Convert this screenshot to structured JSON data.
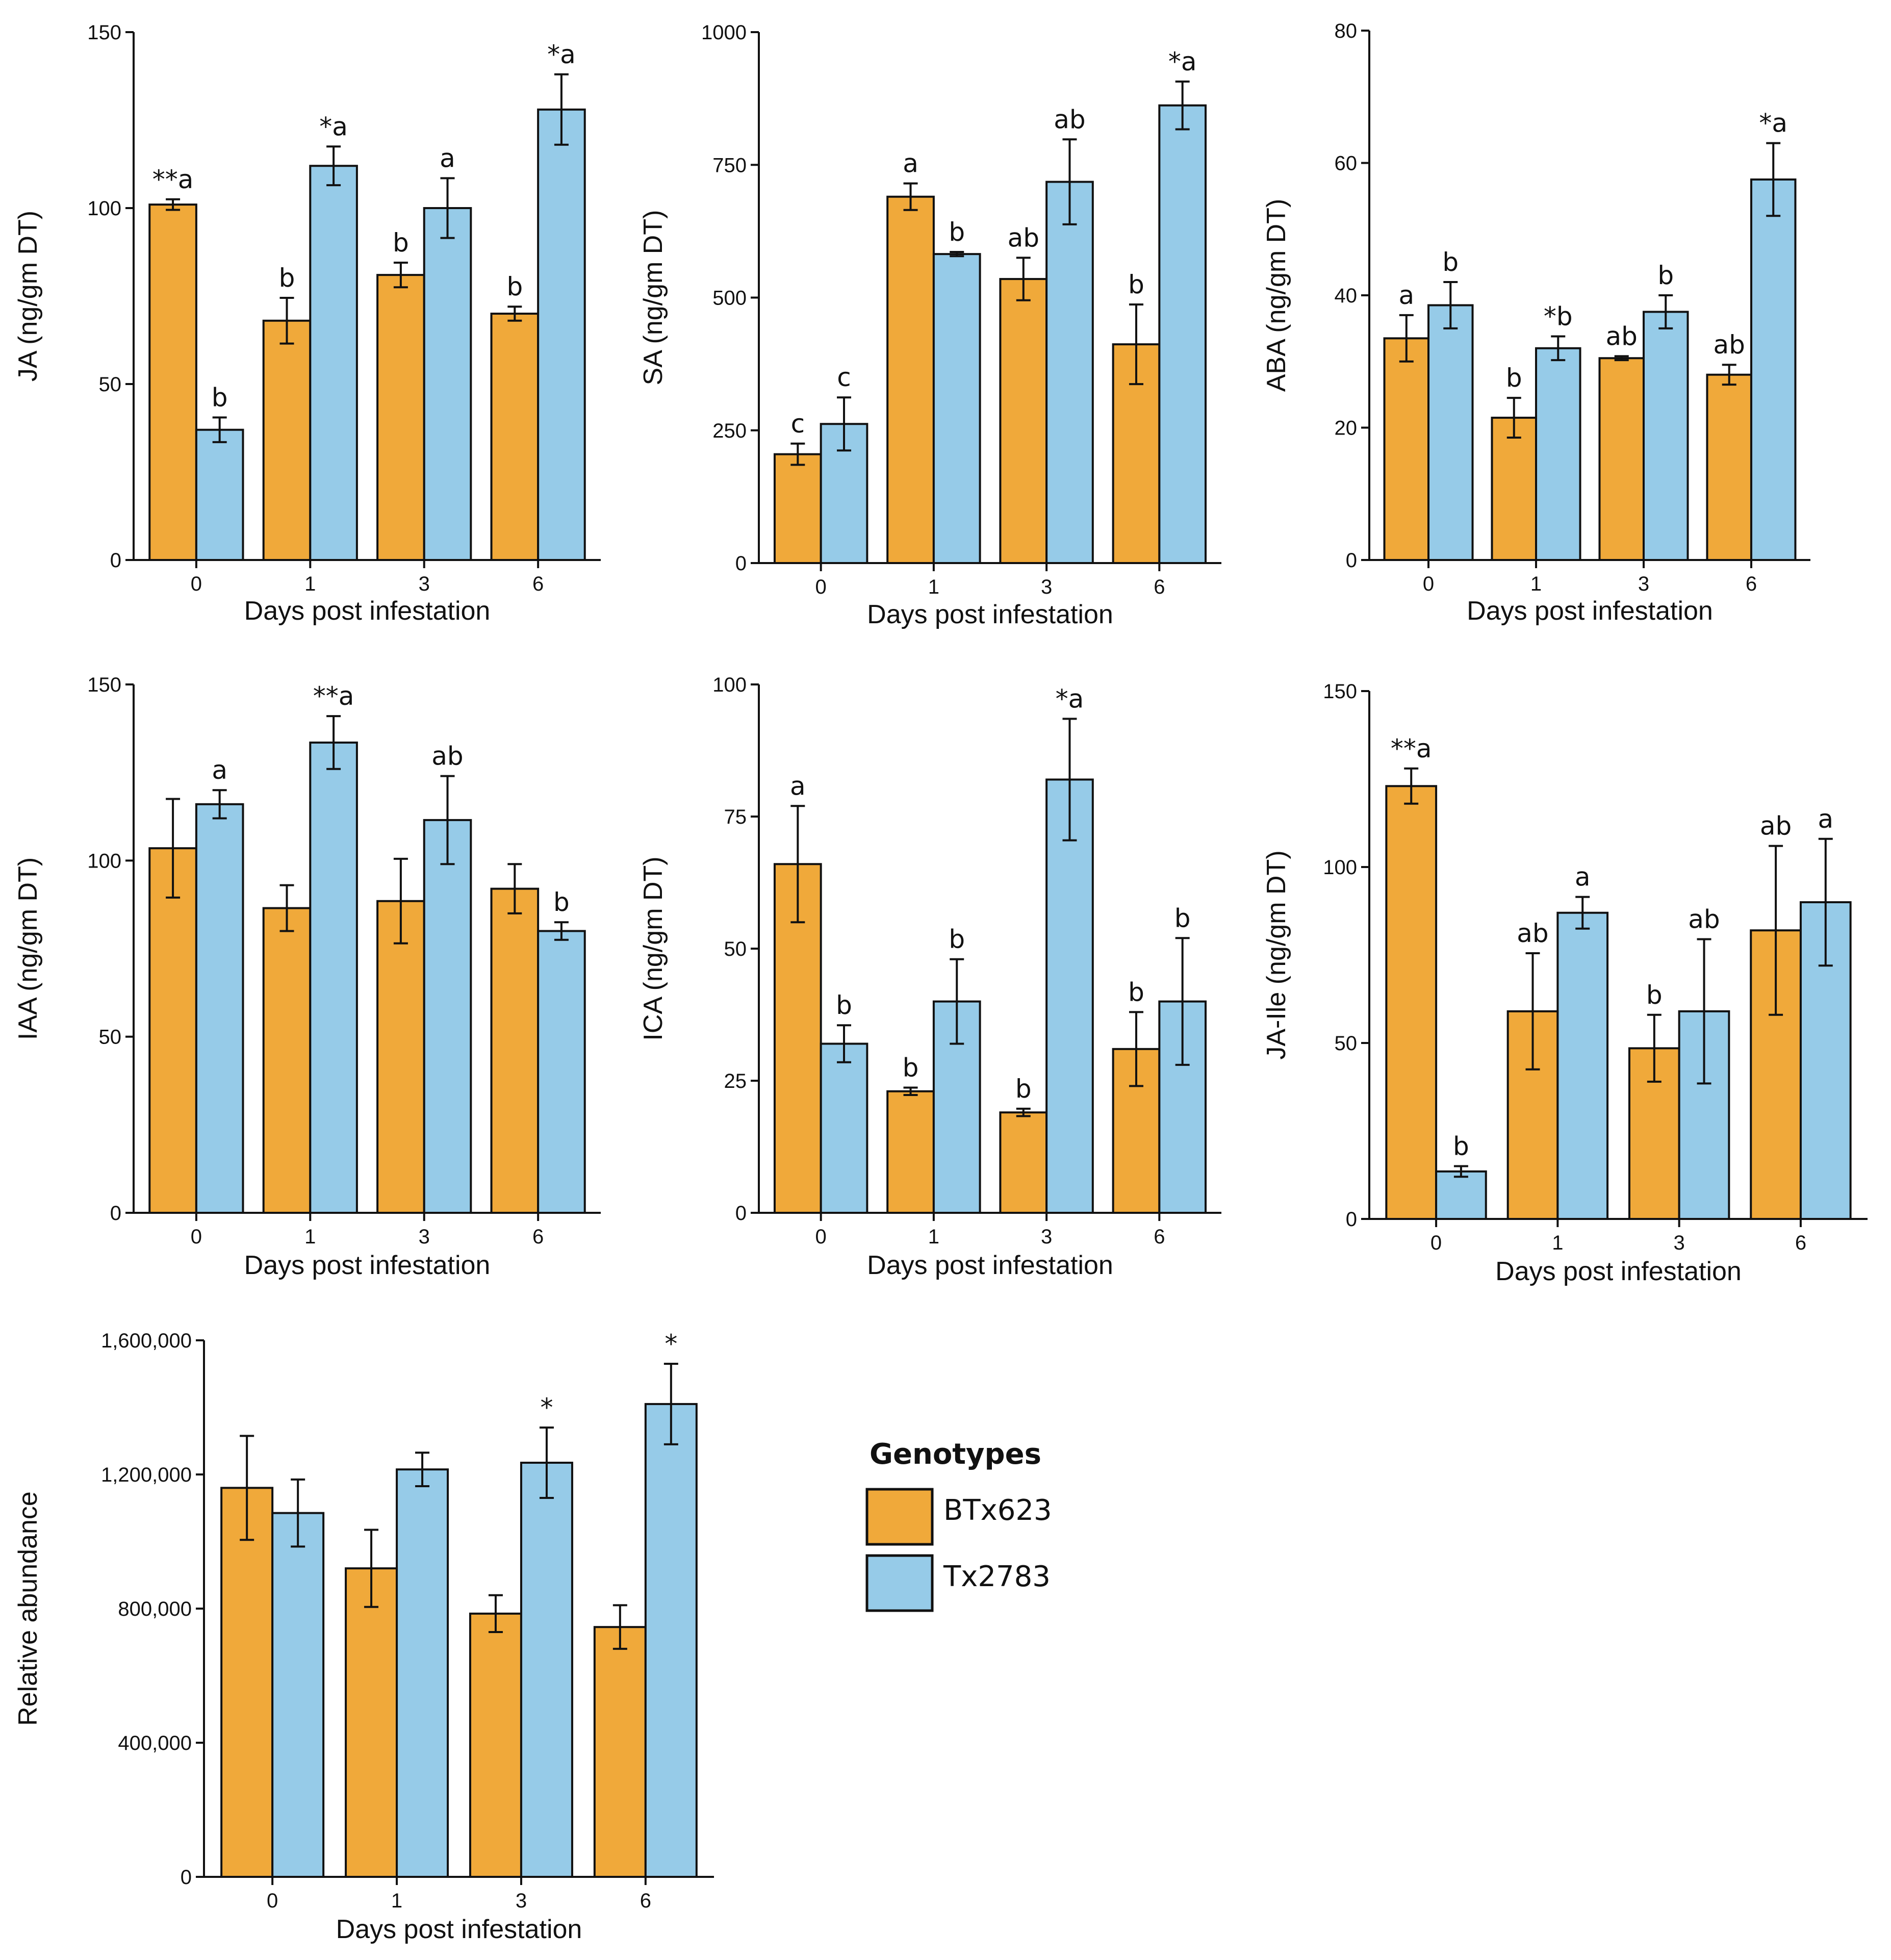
{
  "chart_data": [
    {
      "type": "bar",
      "categories": [
        "0",
        "1",
        "3",
        "6"
      ],
      "series": [
        {
          "name": "BTx623",
          "values": [
            101,
            68,
            81,
            70
          ],
          "errors": [
            1.5,
            6.5,
            3.5,
            2
          ],
          "labels": [
            "**a",
            "b",
            "b",
            "b"
          ]
        },
        {
          "name": "Tx2783",
          "values": [
            37,
            112,
            100,
            128
          ],
          "errors": [
            3.5,
            5.5,
            8.5,
            10
          ],
          "labels": [
            "b",
            "*a",
            "a",
            "*a"
          ]
        }
      ],
      "xlabel": "Days post infestation",
      "ylabel": "JA (ng/gm DT)",
      "ylim": [
        0,
        150
      ],
      "yticks": [
        "0",
        "50",
        "100",
        "150"
      ]
    },
    {
      "type": "bar",
      "categories": [
        "0",
        "1",
        "3",
        "6"
      ],
      "series": [
        {
          "name": "BTx623",
          "values": [
            205,
            690,
            535,
            412
          ],
          "errors": [
            20,
            25,
            40,
            75
          ],
          "labels": [
            "c",
            "a",
            "ab",
            "b"
          ]
        },
        {
          "name": "Tx2783",
          "values": [
            262,
            582,
            718,
            862
          ],
          "errors": [
            50,
            4,
            80,
            45
          ],
          "labels": [
            "c",
            "b",
            "ab",
            "*a"
          ]
        }
      ],
      "xlabel": "Days post infestation",
      "ylabel": "SA (ng/gm DT)",
      "ylim": [
        0,
        1000
      ],
      "yticks": [
        "0",
        "250",
        "500",
        "750",
        "1000"
      ]
    },
    {
      "type": "bar",
      "categories": [
        "0",
        "1",
        "3",
        "6"
      ],
      "series": [
        {
          "name": "BTx623",
          "values": [
            33.5,
            21.5,
            30.5,
            28
          ],
          "errors": [
            3.5,
            3,
            0.3,
            1.5
          ],
          "labels": [
            "a",
            "b",
            "ab",
            "ab"
          ]
        },
        {
          "name": "Tx2783",
          "values": [
            38.5,
            32,
            37.5,
            57.5
          ],
          "errors": [
            3.5,
            1.8,
            2.5,
            5.5
          ],
          "labels": [
            "b",
            "*b",
            "b",
            "*a"
          ]
        }
      ],
      "xlabel": "Days post infestation",
      "ylabel": "ABA (ng/gm DT)",
      "ylim": [
        0,
        80
      ],
      "yticks": [
        "0",
        "20",
        "40",
        "60",
        "80"
      ]
    },
    {
      "type": "bar",
      "categories": [
        "0",
        "1",
        "3",
        "6"
      ],
      "series": [
        {
          "name": "BTx623",
          "values": [
            103.5,
            86.5,
            88.5,
            92
          ],
          "errors": [
            14,
            6.5,
            12,
            7
          ],
          "labels": [
            "",
            "",
            "",
            ""
          ]
        },
        {
          "name": "Tx2783",
          "values": [
            116,
            133.5,
            111.5,
            80
          ],
          "errors": [
            4,
            7.5,
            12.5,
            2.5
          ],
          "labels": [
            "a",
            "**a",
            "ab",
            "b"
          ]
        }
      ],
      "xlabel": "Days post infestation",
      "ylabel": "IAA (ng/gm DT)",
      "ylim": [
        0,
        150
      ],
      "yticks": [
        "0",
        "50",
        "100",
        "150"
      ]
    },
    {
      "type": "bar",
      "categories": [
        "0",
        "1",
        "3",
        "6"
      ],
      "series": [
        {
          "name": "BTx623",
          "values": [
            66,
            23,
            19,
            31
          ],
          "errors": [
            11,
            0.7,
            0.7,
            7
          ],
          "labels": [
            "a",
            "b",
            "b",
            "b"
          ]
        },
        {
          "name": "Tx2783",
          "values": [
            32,
            40,
            82,
            40
          ],
          "errors": [
            3.5,
            8,
            11.5,
            12
          ],
          "labels": [
            "b",
            "b",
            "*a",
            "b"
          ]
        }
      ],
      "xlabel": "Days post infestation",
      "ylabel": "ICA (ng/gm DT)",
      "ylim": [
        0,
        100
      ],
      "yticks": [
        "0",
        "25",
        "50",
        "75",
        "100"
      ]
    },
    {
      "type": "bar",
      "categories": [
        "0",
        "1",
        "3",
        "6"
      ],
      "series": [
        {
          "name": "BTx623",
          "values": [
            123,
            59,
            48.5,
            82
          ],
          "errors": [
            5,
            16.5,
            9.5,
            24
          ],
          "labels": [
            "**a",
            "ab",
            "b",
            "ab"
          ]
        },
        {
          "name": "Tx2783",
          "values": [
            13.5,
            87,
            59,
            90
          ],
          "errors": [
            1.5,
            4.5,
            20.5,
            18
          ],
          "labels": [
            "b",
            "a",
            "ab",
            "a"
          ]
        }
      ],
      "xlabel": "Days post infestation",
      "ylabel": "JA-Ile (ng/gm DT)",
      "ylim": [
        0,
        150
      ],
      "yticks": [
        "0",
        "50",
        "100",
        "150"
      ]
    },
    {
      "type": "bar",
      "categories": [
        "0",
        "1",
        "3",
        "6"
      ],
      "series": [
        {
          "name": "BTx623",
          "values": [
            1160000,
            920000,
            785000,
            745000
          ],
          "errors": [
            155000,
            115000,
            55000,
            65000
          ],
          "labels": [
            "",
            "",
            "",
            ""
          ]
        },
        {
          "name": "Tx2783",
          "values": [
            1085000,
            1215000,
            1235000,
            1410000
          ],
          "errors": [
            100000,
            50000,
            105000,
            120000
          ],
          "labels": [
            "",
            "",
            "*",
            "*"
          ]
        }
      ],
      "xlabel": "Days post infestation",
      "ylabel": "Relative abundance",
      "ylim": [
        0,
        1600000
      ],
      "yticks": [
        "0",
        "400,000",
        "800,000",
        "1,200,000",
        "1,600,000"
      ]
    }
  ],
  "legend": {
    "title": "Genotypes",
    "items": [
      {
        "name": "BTx623",
        "color": "#F0A93A"
      },
      {
        "name": "Tx2783",
        "color": "#96CBE8"
      }
    ]
  },
  "colors": {
    "BTx623": "#F0A93A",
    "Tx2783": "#96CBE8",
    "stroke": "#111111"
  }
}
